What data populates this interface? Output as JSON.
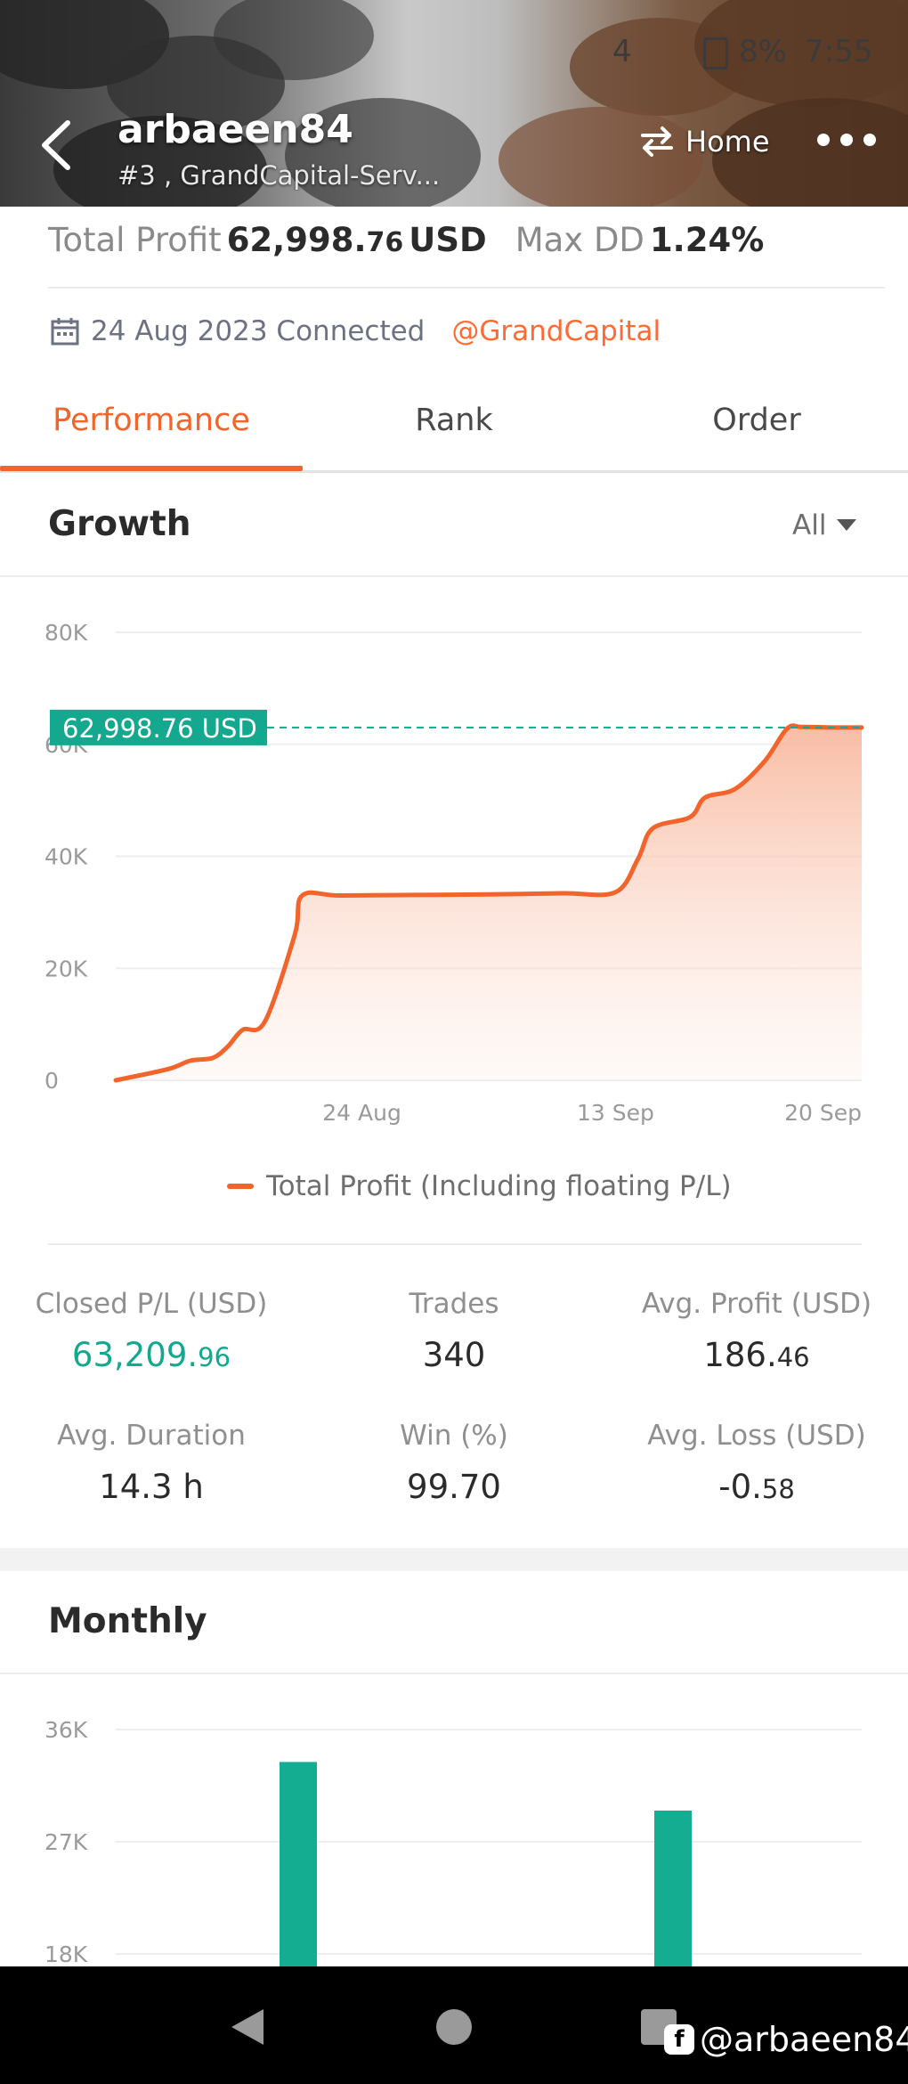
{
  "status_bar": {
    "left": "4",
    "battery": "8%",
    "time": "7:55"
  },
  "header": {
    "username": "arbaeen84",
    "subtitle": "#3 , GrandCapital-Serv...",
    "home_label": "Home"
  },
  "summary": {
    "total_profit_label": "Total Profit",
    "total_profit_main": "62,998.",
    "total_profit_decimals": "76",
    "total_profit_unit": "USD",
    "max_dd_label": "Max DD",
    "max_dd_value": "1.24%",
    "connected_text": "24 Aug 2023 Connected",
    "broker": "@GrandCapital"
  },
  "tabs": [
    {
      "label": "Performance",
      "active": true
    },
    {
      "label": "Rank",
      "active": false
    },
    {
      "label": "Order",
      "active": false
    }
  ],
  "growth": {
    "title": "Growth",
    "filter": "All",
    "marker_label": "62,998.76 USD",
    "legend": "Total Profit (Including floating P/L)"
  },
  "chart_data": [
    {
      "type": "area",
      "title": "Growth",
      "ylim": [
        0,
        80000
      ],
      "yticks": [
        "80K",
        "60K",
        "40K",
        "20K",
        "0"
      ],
      "ytick_values": [
        80000,
        60000,
        40000,
        20000,
        0
      ],
      "xticks": [
        "24 Aug",
        "13 Sep",
        "20 Sep"
      ],
      "xtick_positions": [
        0.33,
        0.67,
        1.0
      ],
      "series": [
        {
          "name": "Total Profit (Including floating P/L)",
          "color": "#f1642b",
          "x": [
            0,
            0.07,
            0.1,
            0.13,
            0.15,
            0.17,
            0.2,
            0.24,
            0.25,
            0.3,
            0.4,
            0.5,
            0.6,
            0.67,
            0.7,
            0.72,
            0.77,
            0.79,
            0.83,
            0.87,
            0.9,
            0.92,
            0.96,
            1.0
          ],
          "values": [
            0,
            2000,
            3500,
            4000,
            6000,
            9000,
            10500,
            26000,
            33000,
            33000,
            33100,
            33200,
            33400,
            33600,
            39500,
            45000,
            47000,
            50500,
            52000,
            57000,
            62800,
            63100,
            63000,
            63000
          ]
        }
      ],
      "reference_value": 62998.76
    },
    {
      "type": "bar",
      "title": "Monthly",
      "ylim": [
        18000,
        36000
      ],
      "yticks": [
        "36K",
        "27K",
        "18K"
      ],
      "ytick_values": [
        36000,
        27000,
        18000
      ],
      "series": [
        {
          "name": "",
          "color": "#14ad92",
          "values": [
            33400,
            29500
          ]
        }
      ]
    }
  ],
  "stats": [
    {
      "label": "Closed P/L (USD)",
      "main": "63,209.",
      "dec": "96",
      "green": true
    },
    {
      "label": "Trades",
      "main": "340",
      "dec": "",
      "green": false
    },
    {
      "label": "Avg. Profit (USD)",
      "main": "186.",
      "dec": "46",
      "green": false
    },
    {
      "label": "Avg. Duration",
      "main": "14.3 h",
      "dec": "",
      "green": false
    },
    {
      "label": "Win (%)",
      "main": "99.70",
      "dec": "",
      "green": false
    },
    {
      "label": "Avg. Loss (USD)",
      "main": "-0.",
      "dec": "58",
      "green": false
    }
  ],
  "monthly": {
    "title": "Monthly"
  },
  "watermark": {
    "text": "@arbaeen84"
  },
  "colors": {
    "accent": "#f1642b",
    "green": "#14a88e",
    "bar": "#14ad92"
  }
}
